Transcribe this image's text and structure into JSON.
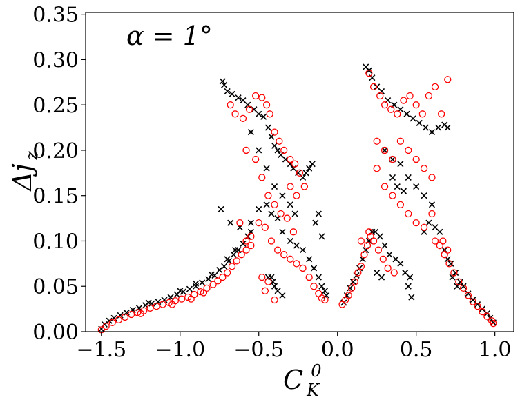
{
  "chart_data": {
    "type": "scatter",
    "title": "",
    "annotation": "α = 1°",
    "xlabel": {
      "base": "C",
      "sub": "K",
      "sup": "0"
    },
    "ylabel": {
      "base": "Δj",
      "sub": "z"
    },
    "xlim": [
      -1.6,
      1.12
    ],
    "ylim": [
      0.0,
      0.352
    ],
    "xticks": [
      -1.5,
      -1.0,
      -0.5,
      0.0,
      0.5,
      1.0
    ],
    "xtick_labels": [
      "−1.5",
      "−1.0",
      "−0.5",
      "0.0",
      "0.5",
      "1.0"
    ],
    "yticks": [
      0.0,
      0.05,
      0.1,
      0.15,
      0.2,
      0.25,
      0.3,
      0.35
    ],
    "ytick_labels": [
      "0.00",
      "0.05",
      "0.10",
      "0.15",
      "0.20",
      "0.25",
      "0.30",
      "0.35"
    ],
    "grid": false,
    "legend": "none",
    "series": [
      {
        "marker": "x",
        "color": "#000000",
        "points": [
          [
            -1.5,
            0.003
          ],
          [
            -1.48,
            0.008
          ],
          [
            -1.45,
            0.012
          ],
          [
            -1.42,
            0.015
          ],
          [
            -1.38,
            0.018
          ],
          [
            -1.34,
            0.021
          ],
          [
            -1.3,
            0.024
          ],
          [
            -1.26,
            0.026
          ],
          [
            -1.22,
            0.029
          ],
          [
            -1.18,
            0.031
          ],
          [
            -1.14,
            0.033
          ],
          [
            -1.1,
            0.035
          ],
          [
            -1.06,
            0.038
          ],
          [
            -1.02,
            0.041
          ],
          [
            -0.98,
            0.044
          ],
          [
            -0.94,
            0.047
          ],
          [
            -0.9,
            0.05
          ],
          [
            -0.86,
            0.054
          ],
          [
            -0.82,
            0.058
          ],
          [
            -0.78,
            0.062
          ],
          [
            -0.75,
            0.068
          ],
          [
            -0.72,
            0.072
          ],
          [
            -0.69,
            0.078
          ],
          [
            -0.66,
            0.085
          ],
          [
            -0.63,
            0.09
          ],
          [
            -0.6,
            0.097
          ],
          [
            -0.57,
            0.105
          ],
          [
            -0.55,
            0.11
          ],
          [
            -1.2,
            0.032
          ],
          [
            -1.0,
            0.045
          ],
          [
            -0.9,
            0.053
          ],
          [
            -0.8,
            0.063
          ],
          [
            -0.7,
            0.08
          ],
          [
            -0.65,
            0.09
          ],
          [
            -0.73,
            0.276
          ],
          [
            -0.72,
            0.272
          ],
          [
            -0.7,
            0.265
          ],
          [
            -0.67,
            0.262
          ],
          [
            -0.63,
            0.258
          ],
          [
            -0.6,
            0.255
          ],
          [
            -0.57,
            0.25
          ],
          [
            -0.53,
            0.245
          ],
          [
            -0.5,
            0.24
          ],
          [
            -0.47,
            0.237
          ],
          [
            -0.44,
            0.225
          ],
          [
            -0.42,
            0.215
          ],
          [
            -0.4,
            0.205
          ],
          [
            -0.38,
            0.2
          ],
          [
            -0.36,
            0.195
          ],
          [
            -0.33,
            0.19
          ],
          [
            -0.3,
            0.185
          ],
          [
            -0.28,
            0.18
          ],
          [
            -0.25,
            0.175
          ],
          [
            -0.22,
            0.17
          ],
          [
            -0.2,
            0.175
          ],
          [
            -0.18,
            0.18
          ],
          [
            -0.16,
            0.185
          ],
          [
            -0.55,
            0.22
          ],
          [
            -0.5,
            0.2
          ],
          [
            -0.45,
            0.18
          ],
          [
            -0.4,
            0.16
          ],
          [
            -0.35,
            0.15
          ],
          [
            -0.3,
            0.14
          ],
          [
            -0.27,
            0.13
          ],
          [
            -0.74,
            0.135
          ],
          [
            -0.68,
            0.12
          ],
          [
            -0.62,
            0.115
          ],
          [
            -0.55,
            0.12
          ],
          [
            -0.5,
            0.135
          ],
          [
            -0.45,
            0.14
          ],
          [
            -0.42,
            0.13
          ],
          [
            -0.38,
            0.125
          ],
          [
            -0.35,
            0.11
          ],
          [
            -0.3,
            0.1
          ],
          [
            -0.26,
            0.095
          ],
          [
            -0.22,
            0.09
          ],
          [
            -0.18,
            0.08
          ],
          [
            -0.15,
            0.07
          ],
          [
            -0.12,
            0.06
          ],
          [
            -0.1,
            0.05
          ],
          [
            -0.08,
            0.045
          ],
          [
            -0.07,
            0.04
          ],
          [
            -0.4,
            0.05
          ],
          [
            -0.38,
            0.045
          ],
          [
            -0.35,
            0.04
          ],
          [
            -0.41,
            0.055
          ],
          [
            -0.42,
            0.06
          ],
          [
            -0.44,
            0.06
          ],
          [
            -0.12,
            0.13
          ],
          [
            -0.1,
            0.105
          ],
          [
            -0.14,
            0.12
          ],
          [
            0.04,
            0.032
          ],
          [
            0.06,
            0.04
          ],
          [
            0.08,
            0.048
          ],
          [
            0.1,
            0.055
          ],
          [
            0.12,
            0.062
          ],
          [
            0.14,
            0.07
          ],
          [
            0.16,
            0.08
          ],
          [
            0.18,
            0.09
          ],
          [
            0.2,
            0.1
          ],
          [
            0.22,
            0.11
          ],
          [
            0.24,
            0.11
          ],
          [
            0.27,
            0.105
          ],
          [
            0.3,
            0.095
          ],
          [
            0.33,
            0.085
          ],
          [
            0.37,
            0.08
          ],
          [
            0.4,
            0.075
          ],
          [
            0.43,
            0.065
          ],
          [
            0.46,
            0.06
          ],
          [
            0.45,
            0.05
          ],
          [
            0.47,
            0.038
          ],
          [
            0.28,
            0.06
          ],
          [
            0.25,
            0.065
          ],
          [
            0.18,
            0.292
          ],
          [
            0.2,
            0.288
          ],
          [
            0.22,
            0.28
          ],
          [
            0.25,
            0.27
          ],
          [
            0.28,
            0.265
          ],
          [
            0.32,
            0.255
          ],
          [
            0.36,
            0.25
          ],
          [
            0.4,
            0.245
          ],
          [
            0.44,
            0.24
          ],
          [
            0.48,
            0.235
          ],
          [
            0.52,
            0.23
          ],
          [
            0.56,
            0.225
          ],
          [
            0.6,
            0.22
          ],
          [
            0.64,
            0.225
          ],
          [
            0.68,
            0.228
          ],
          [
            0.7,
            0.225
          ],
          [
            0.3,
            0.2
          ],
          [
            0.35,
            0.19
          ],
          [
            0.4,
            0.185
          ],
          [
            0.45,
            0.17
          ],
          [
            0.5,
            0.16
          ],
          [
            0.55,
            0.15
          ],
          [
            0.6,
            0.14
          ],
          [
            0.35,
            0.17
          ],
          [
            0.38,
            0.16
          ],
          [
            0.42,
            0.155
          ],
          [
            0.55,
            0.11
          ],
          [
            0.58,
            0.12
          ],
          [
            0.62,
            0.115
          ],
          [
            0.65,
            0.11
          ],
          [
            0.68,
            0.09
          ],
          [
            0.7,
            0.08
          ],
          [
            0.72,
            0.075
          ],
          [
            0.75,
            0.065
          ],
          [
            0.78,
            0.055
          ],
          [
            0.8,
            0.05
          ],
          [
            0.83,
            0.042
          ],
          [
            0.86,
            0.035
          ],
          [
            0.89,
            0.03
          ],
          [
            0.92,
            0.025
          ],
          [
            0.95,
            0.02
          ],
          [
            0.97,
            0.015
          ],
          [
            0.99,
            0.01
          ],
          [
            0.73,
            0.06
          ],
          [
            0.76,
            0.05
          ]
        ]
      },
      {
        "marker": "o",
        "color": "#ff0000",
        "points": [
          [
            -1.5,
            0.002
          ],
          [
            -1.47,
            0.006
          ],
          [
            -1.43,
            0.01
          ],
          [
            -1.39,
            0.013
          ],
          [
            -1.35,
            0.016
          ],
          [
            -1.31,
            0.019
          ],
          [
            -1.27,
            0.021
          ],
          [
            -1.23,
            0.023
          ],
          [
            -1.19,
            0.026
          ],
          [
            -1.15,
            0.028
          ],
          [
            -1.11,
            0.03
          ],
          [
            -1.07,
            0.032
          ],
          [
            -1.03,
            0.034
          ],
          [
            -0.99,
            0.036
          ],
          [
            -0.95,
            0.038
          ],
          [
            -0.91,
            0.041
          ],
          [
            -0.87,
            0.044
          ],
          [
            -0.83,
            0.048
          ],
          [
            -0.79,
            0.052
          ],
          [
            -0.76,
            0.056
          ],
          [
            -0.73,
            0.06
          ],
          [
            -0.7,
            0.065
          ],
          [
            -0.67,
            0.072
          ],
          [
            -0.64,
            0.078
          ],
          [
            -0.61,
            0.085
          ],
          [
            -0.58,
            0.09
          ],
          [
            -0.55,
            0.095
          ],
          [
            -1.25,
            0.02
          ],
          [
            -1.05,
            0.03
          ],
          [
            -0.93,
            0.036
          ],
          [
            -0.85,
            0.043
          ],
          [
            -0.68,
            0.25
          ],
          [
            -0.65,
            0.24
          ],
          [
            -0.6,
            0.235
          ],
          [
            -0.56,
            0.245
          ],
          [
            -0.52,
            0.26
          ],
          [
            -0.48,
            0.258
          ],
          [
            -0.45,
            0.25
          ],
          [
            -0.43,
            0.24
          ],
          [
            -0.4,
            0.22
          ],
          [
            -0.37,
            0.21
          ],
          [
            -0.34,
            0.2
          ],
          [
            -0.3,
            0.19
          ],
          [
            -0.27,
            0.185
          ],
          [
            -0.24,
            0.175
          ],
          [
            -0.21,
            0.16
          ],
          [
            -0.58,
            0.2
          ],
          [
            -0.52,
            0.19
          ],
          [
            -0.48,
            0.17
          ],
          [
            -0.44,
            0.15
          ],
          [
            -0.4,
            0.14
          ],
          [
            -0.36,
            0.13
          ],
          [
            -0.32,
            0.125
          ],
          [
            -0.28,
            0.11
          ],
          [
            -0.3,
            0.16
          ],
          [
            -0.26,
            0.15
          ],
          [
            -0.62,
            0.12
          ],
          [
            -0.58,
            0.1
          ],
          [
            -0.55,
            0.105
          ],
          [
            -0.5,
            0.12
          ],
          [
            -0.46,
            0.115
          ],
          [
            -0.42,
            0.1
          ],
          [
            -0.38,
            0.09
          ],
          [
            -0.34,
            0.085
          ],
          [
            -0.3,
            0.08
          ],
          [
            -0.26,
            0.075
          ],
          [
            -0.22,
            0.07
          ],
          [
            -0.18,
            0.06
          ],
          [
            -0.15,
            0.05
          ],
          [
            -0.12,
            0.042
          ],
          [
            -0.1,
            0.037
          ],
          [
            -0.08,
            0.035
          ],
          [
            -0.48,
            0.06
          ],
          [
            -0.44,
            0.055
          ],
          [
            -0.4,
            0.035
          ],
          [
            -0.46,
            0.045
          ],
          [
            0.03,
            0.03
          ],
          [
            0.05,
            0.035
          ],
          [
            0.07,
            0.04
          ],
          [
            0.09,
            0.048
          ],
          [
            0.11,
            0.055
          ],
          [
            0.13,
            0.065
          ],
          [
            0.15,
            0.072
          ],
          [
            0.17,
            0.085
          ],
          [
            0.19,
            0.095
          ],
          [
            0.21,
            0.105
          ],
          [
            0.23,
            0.1
          ],
          [
            0.26,
            0.09
          ],
          [
            0.29,
            0.08
          ],
          [
            0.32,
            0.07
          ],
          [
            0.36,
            0.065
          ],
          [
            0.15,
            0.1
          ],
          [
            0.2,
            0.11
          ],
          [
            0.2,
            0.285
          ],
          [
            0.23,
            0.27
          ],
          [
            0.27,
            0.26
          ],
          [
            0.3,
            0.25
          ],
          [
            0.34,
            0.245
          ],
          [
            0.38,
            0.24
          ],
          [
            0.42,
            0.255
          ],
          [
            0.46,
            0.26
          ],
          [
            0.5,
            0.25
          ],
          [
            0.54,
            0.24
          ],
          [
            0.58,
            0.26
          ],
          [
            0.62,
            0.27
          ],
          [
            0.66,
            0.24
          ],
          [
            0.7,
            0.278
          ],
          [
            0.25,
            0.21
          ],
          [
            0.3,
            0.2
          ],
          [
            0.35,
            0.19
          ],
          [
            0.4,
            0.21
          ],
          [
            0.45,
            0.2
          ],
          [
            0.5,
            0.19
          ],
          [
            0.55,
            0.18
          ],
          [
            0.6,
            0.17
          ],
          [
            0.25,
            0.18
          ],
          [
            0.3,
            0.16
          ],
          [
            0.35,
            0.15
          ],
          [
            0.4,
            0.14
          ],
          [
            0.45,
            0.13
          ],
          [
            0.5,
            0.12
          ],
          [
            0.55,
            0.115
          ],
          [
            0.6,
            0.13
          ],
          [
            0.62,
            0.1
          ],
          [
            0.65,
            0.095
          ],
          [
            0.68,
            0.085
          ],
          [
            0.71,
            0.075
          ],
          [
            0.74,
            0.065
          ],
          [
            0.77,
            0.055
          ],
          [
            0.8,
            0.048
          ],
          [
            0.83,
            0.04
          ],
          [
            0.86,
            0.033
          ],
          [
            0.89,
            0.028
          ],
          [
            0.92,
            0.022
          ],
          [
            0.95,
            0.017
          ],
          [
            0.98,
            0.012
          ],
          [
            0.99,
            0.009
          ],
          [
            0.67,
            0.1
          ],
          [
            0.7,
            0.09
          ]
        ]
      }
    ]
  }
}
